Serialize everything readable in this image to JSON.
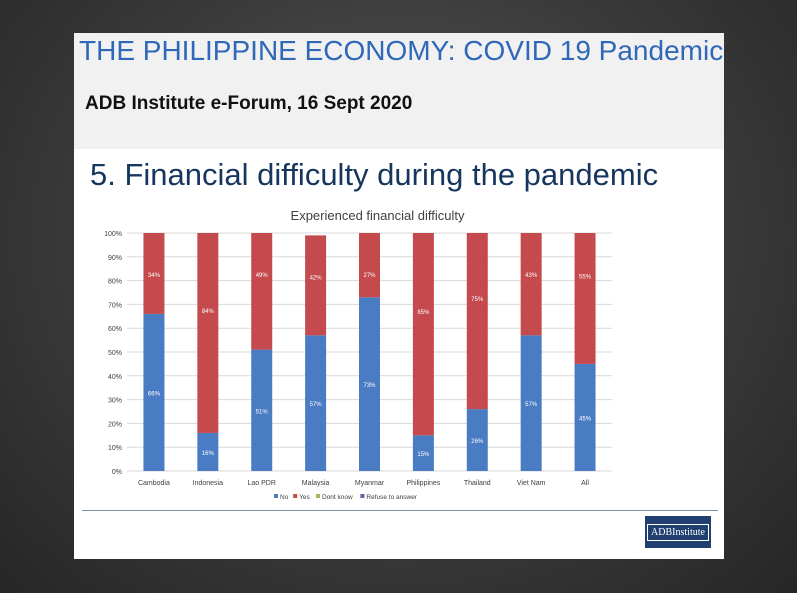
{
  "slide": {
    "title": "THE PHILIPPINE ECONOMY: COVID 19 Pandemic",
    "subtitle": "ADB Institute e-Forum, 16 Sept 2020",
    "section_heading": "5. Financial difficulty during the pandemic",
    "logo_text": "ADBInstitute"
  },
  "colors": {
    "no": "#4a7cc3",
    "yes": "#c44a4d",
    "dont_know": "#9bbb59",
    "refuse": "#6b5fa8",
    "grid": "#d9d9d9",
    "text": "#404040"
  },
  "chart_data": {
    "type": "bar",
    "stacked": true,
    "title": "Experienced financial difficulty",
    "categories": [
      "Cambodia",
      "Indonesia",
      "Lao PDR",
      "Malaysia",
      "Myanmar",
      "Philippines",
      "Thailand",
      "Viet Nam",
      "All"
    ],
    "series": [
      {
        "name": "No",
        "values": [
          66,
          16,
          51,
          57,
          73,
          15,
          26,
          57,
          45
        ],
        "labels": [
          "66%",
          "16%",
          "51%",
          "57%",
          "73%",
          "15%",
          "26%",
          "57%",
          "45%"
        ]
      },
      {
        "name": "Yes",
        "values": [
          34,
          84,
          49,
          42,
          27,
          85,
          75,
          43,
          55
        ],
        "labels": [
          "34%",
          "84%",
          "49%",
          "42%",
          "27%",
          "85%",
          "75%",
          "43%",
          "55%"
        ]
      },
      {
        "name": "Dont know",
        "values": [
          0,
          0,
          0,
          0,
          0,
          0,
          0,
          0,
          0
        ]
      },
      {
        "name": "Refuse to answer",
        "values": [
          0,
          0,
          0,
          0,
          0,
          0,
          0,
          0,
          0
        ]
      }
    ],
    "ylim": [
      0,
      100
    ],
    "yticks": [
      "0%",
      "10%",
      "20%",
      "30%",
      "40%",
      "50%",
      "60%",
      "70%",
      "80%",
      "90%",
      "100%"
    ],
    "grid": true,
    "legend_position": "bottom"
  }
}
